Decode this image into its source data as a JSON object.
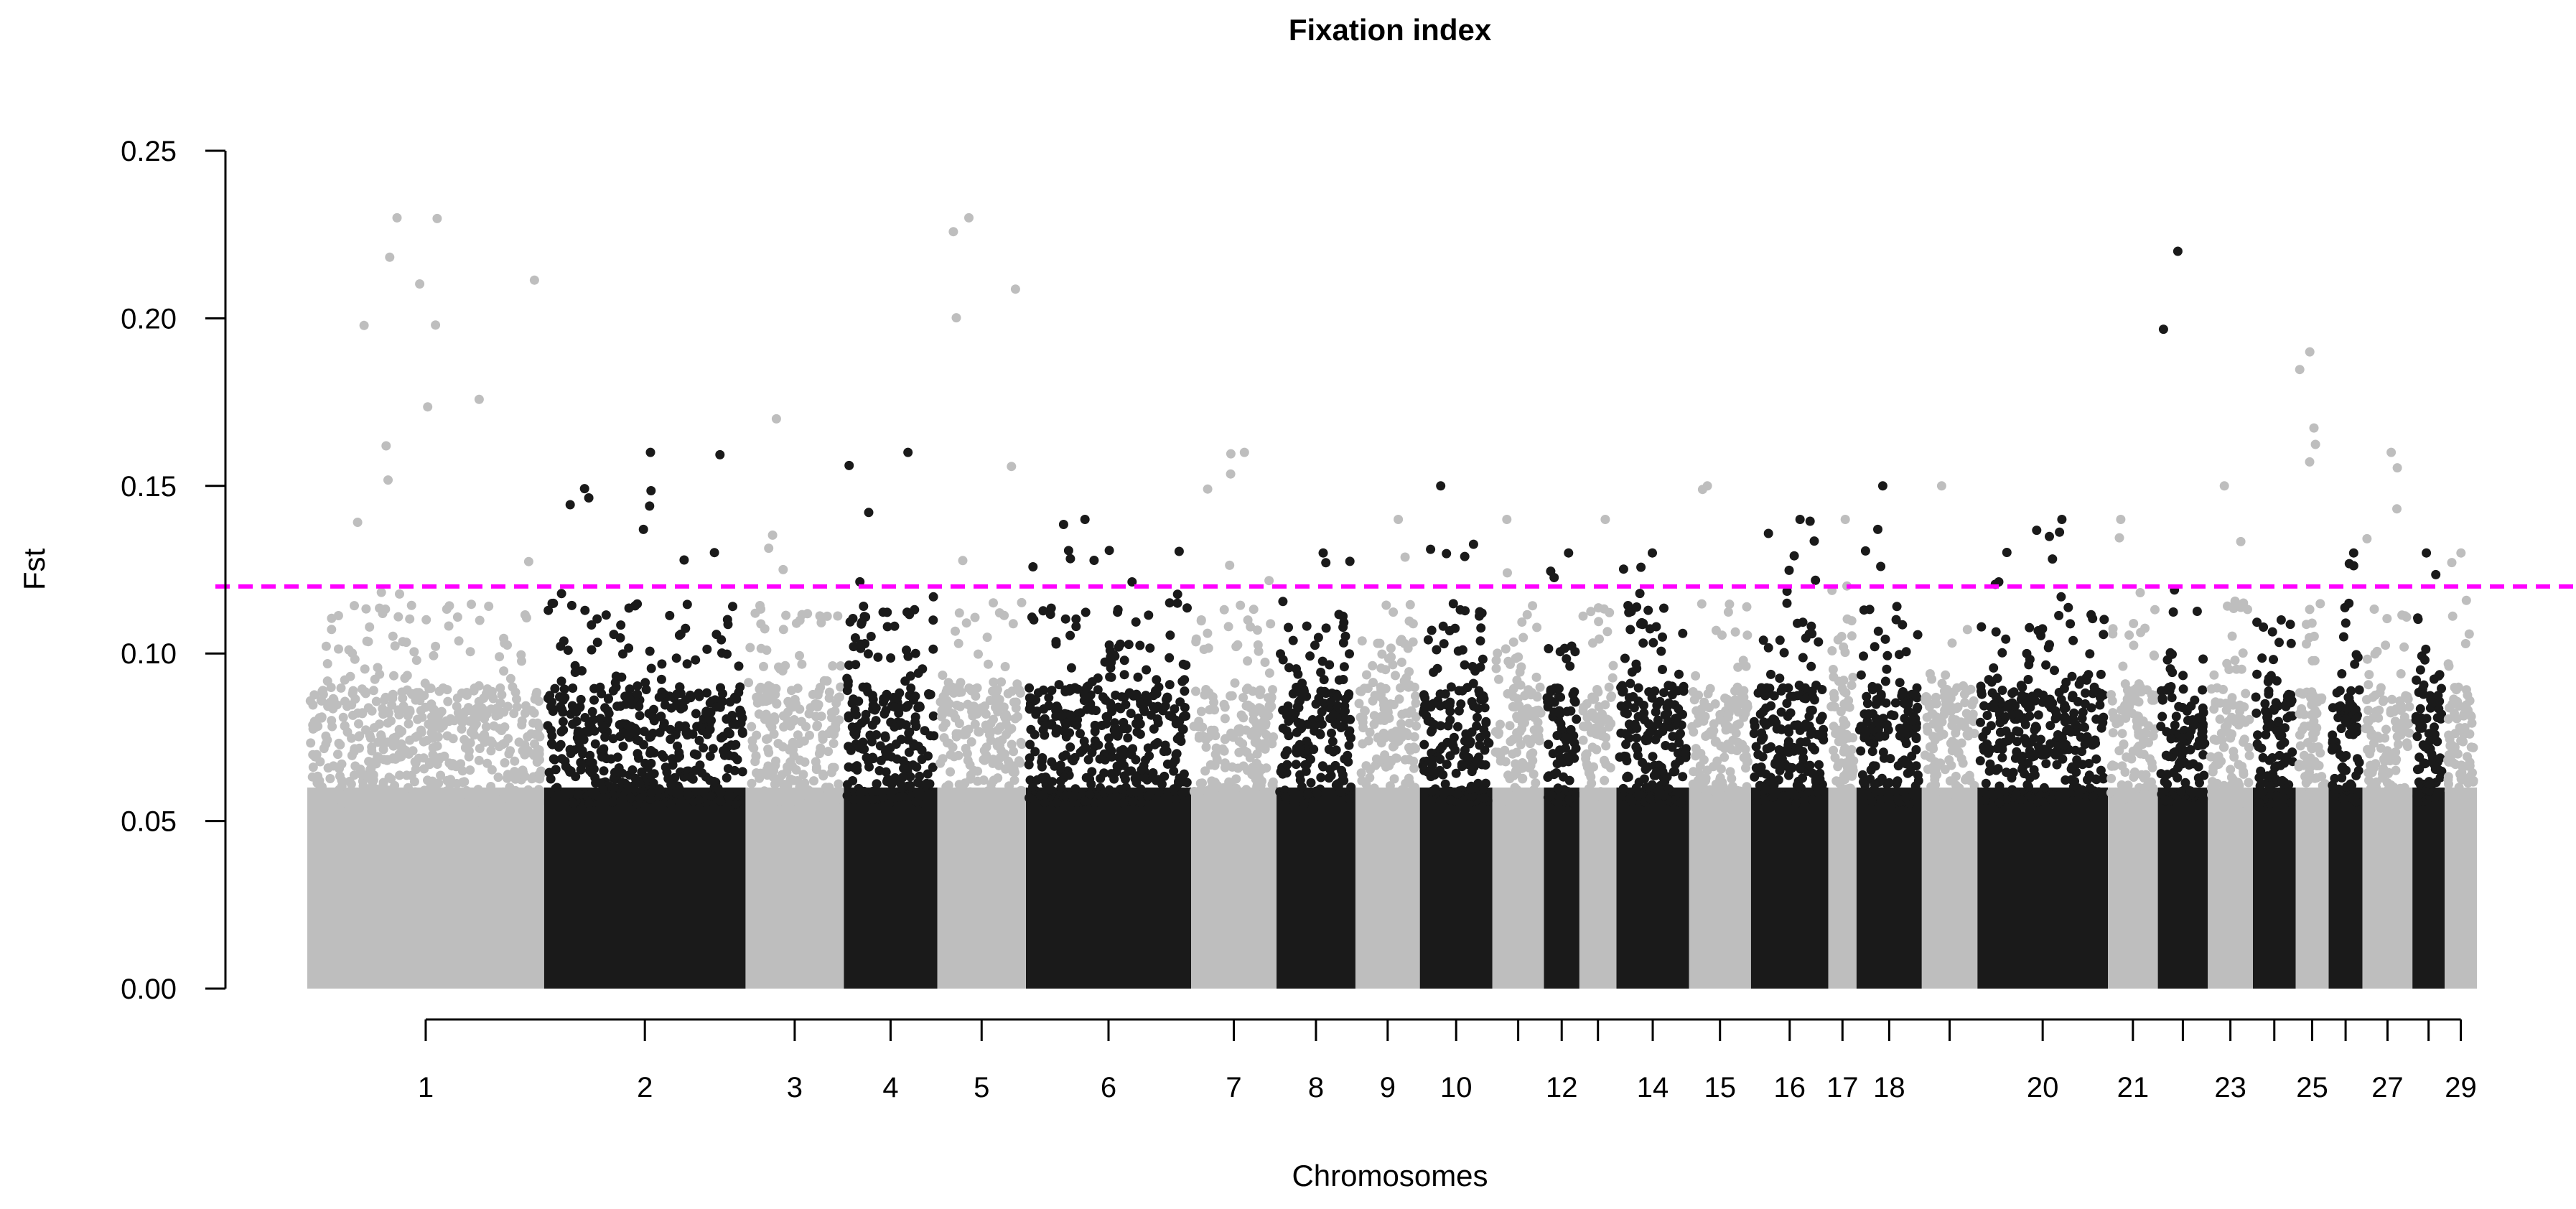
{
  "chart_data": {
    "type": "scatter",
    "title": "Fixation index",
    "xlabel": "Chromosomes",
    "ylabel": "Fst",
    "ylim": [
      0,
      0.25
    ],
    "yticks": [
      "0.00",
      "0.05",
      "0.10",
      "0.15",
      "0.20",
      "0.25"
    ],
    "xtick_labels": [
      "1",
      "2",
      "3",
      "4",
      "5",
      "6",
      "7",
      "8",
      "9",
      "10",
      "12",
      "14",
      "15",
      "16",
      "17",
      "18",
      "20",
      "21",
      "23",
      "25",
      "27",
      "29"
    ],
    "threshold": 0.12,
    "threshold_color": "#ff00ff",
    "colors": {
      "odd": "#bebebe",
      "even": "#1a1a1a"
    },
    "chromosomes": [
      {
        "chr": 1,
        "max": 0.23
      },
      {
        "chr": 2,
        "max": 0.16
      },
      {
        "chr": 3,
        "max": 0.17
      },
      {
        "chr": 4,
        "max": 0.16
      },
      {
        "chr": 5,
        "max": 0.23
      },
      {
        "chr": 6,
        "max": 0.14
      },
      {
        "chr": 7,
        "max": 0.16
      },
      {
        "chr": 8,
        "max": 0.13
      },
      {
        "chr": 9,
        "max": 0.14
      },
      {
        "chr": 10,
        "max": 0.15
      },
      {
        "chr": 11,
        "max": 0.14
      },
      {
        "chr": 12,
        "max": 0.13
      },
      {
        "chr": 13,
        "max": 0.14
      },
      {
        "chr": 14,
        "max": 0.13
      },
      {
        "chr": 15,
        "max": 0.15
      },
      {
        "chr": 16,
        "max": 0.14
      },
      {
        "chr": 17,
        "max": 0.14
      },
      {
        "chr": 18,
        "max": 0.15
      },
      {
        "chr": 19,
        "max": 0.15
      },
      {
        "chr": 20,
        "max": 0.14
      },
      {
        "chr": 21,
        "max": 0.14
      },
      {
        "chr": 22,
        "max": 0.22
      },
      {
        "chr": 23,
        "max": 0.15
      },
      {
        "chr": 24,
        "max": 0.11
      },
      {
        "chr": 25,
        "max": 0.19
      },
      {
        "chr": 26,
        "max": 0.13
      },
      {
        "chr": 27,
        "max": 0.16
      },
      {
        "chr": 28,
        "max": 0.13
      },
      {
        "chr": 29,
        "max": 0.13
      }
    ]
  }
}
